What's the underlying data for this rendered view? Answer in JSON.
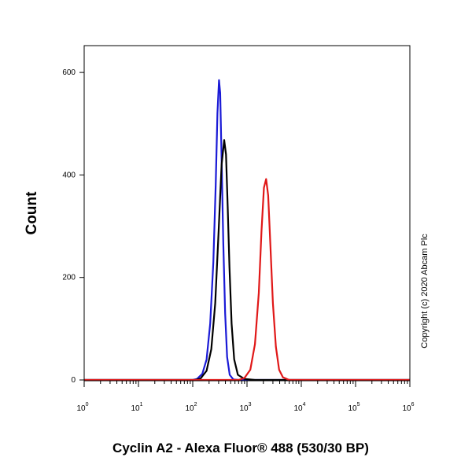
{
  "chart_data": {
    "type": "line",
    "title": "",
    "xlabel": "Cyclin A2 - Alexa Fluor® 488 (530/30 BP)",
    "ylabel": "Count",
    "x_scale": "log",
    "xlim": [
      1,
      1000000
    ],
    "ylim": [
      0,
      650
    ],
    "grid": false,
    "x_tick_values": [
      1,
      10,
      100,
      1000,
      10000,
      100000,
      1000000
    ],
    "x_tick_labels": [
      {
        "base": "10",
        "exp": "0"
      },
      {
        "base": "10",
        "exp": "1"
      },
      {
        "base": "10",
        "exp": "2"
      },
      {
        "base": "10",
        "exp": "3"
      },
      {
        "base": "10",
        "exp": "4"
      },
      {
        "base": "10",
        "exp": "5"
      },
      {
        "base": "10",
        "exp": "6"
      }
    ],
    "y_ticks": [
      0,
      200,
      400,
      600
    ],
    "y_tick_labels": [
      "0",
      "200",
      "400",
      "600"
    ],
    "series": [
      {
        "color": "#1a1ad6",
        "points": [
          [
            1,
            0
          ],
          [
            100,
            0
          ],
          [
            120,
            2
          ],
          [
            150,
            12
          ],
          [
            180,
            40
          ],
          [
            210,
            110
          ],
          [
            240,
            230
          ],
          [
            265,
            380
          ],
          [
            285,
            520
          ],
          [
            305,
            585
          ],
          [
            320,
            560
          ],
          [
            340,
            430
          ],
          [
            365,
            270
          ],
          [
            395,
            130
          ],
          [
            430,
            45
          ],
          [
            480,
            10
          ],
          [
            560,
            1
          ],
          [
            700,
            0
          ],
          [
            1000000,
            0
          ]
        ]
      },
      {
        "color": "#000000",
        "points": [
          [
            1,
            0
          ],
          [
            110,
            0
          ],
          [
            140,
            3
          ],
          [
            180,
            18
          ],
          [
            220,
            60
          ],
          [
            260,
            150
          ],
          [
            300,
            290
          ],
          [
            340,
            420
          ],
          [
            380,
            468
          ],
          [
            410,
            440
          ],
          [
            440,
            340
          ],
          [
            475,
            220
          ],
          [
            520,
            110
          ],
          [
            580,
            40
          ],
          [
            680,
            10
          ],
          [
            900,
            2
          ],
          [
            1400,
            0
          ],
          [
            1000000,
            0
          ]
        ]
      },
      {
        "color": "#e01818",
        "points": [
          [
            1,
            0
          ],
          [
            700,
            0
          ],
          [
            900,
            4
          ],
          [
            1150,
            20
          ],
          [
            1400,
            70
          ],
          [
            1650,
            170
          ],
          [
            1850,
            290
          ],
          [
            2050,
            375
          ],
          [
            2250,
            392
          ],
          [
            2450,
            360
          ],
          [
            2700,
            260
          ],
          [
            3000,
            150
          ],
          [
            3400,
            65
          ],
          [
            3900,
            20
          ],
          [
            4600,
            5
          ],
          [
            6000,
            0
          ],
          [
            1000000,
            0
          ]
        ]
      }
    ],
    "annotations": [
      "Copyright (c) 2020 Abcam Plc"
    ]
  },
  "colors": {
    "axis": "#000000",
    "background": "#ffffff"
  }
}
